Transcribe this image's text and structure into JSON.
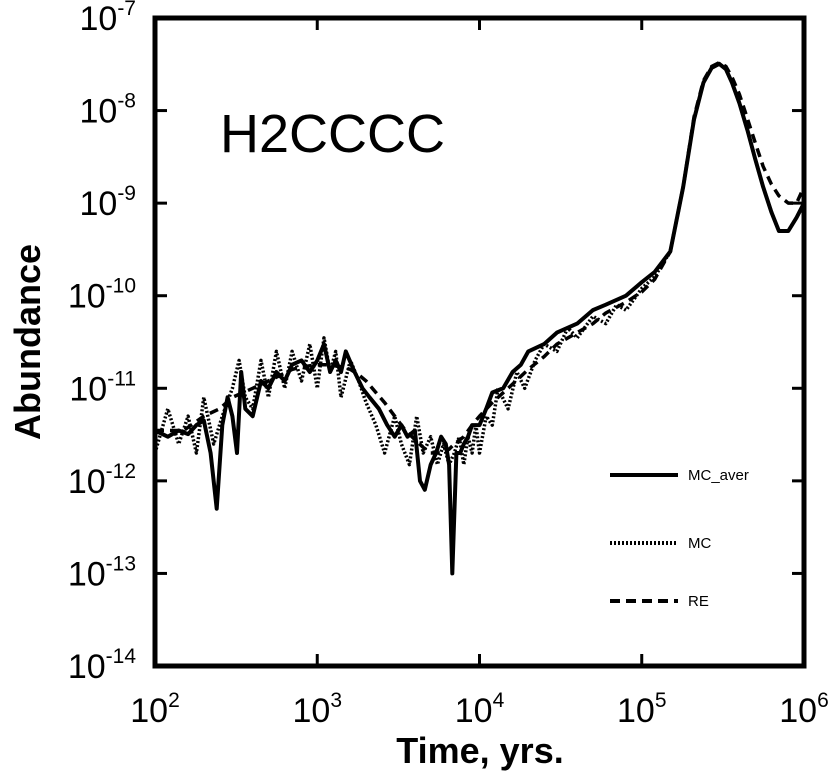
{
  "chart_data": {
    "type": "line",
    "title": "",
    "annotation": "H2CCCC",
    "xlabel": "Time, yrs.",
    "ylabel": "Abundance",
    "xscale": "log",
    "yscale": "log",
    "xlim": [
      100,
      1000000
    ],
    "ylim": [
      1e-14,
      1e-07
    ],
    "grid": false,
    "legend_position": "bottom-right",
    "x_ticks": [
      {
        "base": "10",
        "exp": "2",
        "value": 100
      },
      {
        "base": "10",
        "exp": "3",
        "value": 1000
      },
      {
        "base": "10",
        "exp": "4",
        "value": 10000
      },
      {
        "base": "10",
        "exp": "5",
        "value": 100000
      },
      {
        "base": "10",
        "exp": "6",
        "value": 1000000
      }
    ],
    "y_ticks": [
      {
        "base": "10",
        "exp": "-14",
        "value": 1e-14
      },
      {
        "base": "10",
        "exp": "-13",
        "value": 1e-13
      },
      {
        "base": "10",
        "exp": "-12",
        "value": 1e-12
      },
      {
        "base": "10",
        "exp": "-11",
        "value": 1e-11
      },
      {
        "base": "10",
        "exp": "-10",
        "value": 1e-10
      },
      {
        "base": "10",
        "exp": "-9",
        "value": 1e-09
      },
      {
        "base": "10",
        "exp": "-8",
        "value": 1e-08
      },
      {
        "base": "10",
        "exp": "-7",
        "value": 1e-07
      }
    ],
    "series": [
      {
        "name": "MC_aver",
        "style": "solid",
        "color": "#000000",
        "x": [
          100,
          120,
          140,
          160,
          180,
          200,
          220,
          240,
          260,
          280,
          300,
          320,
          340,
          360,
          400,
          450,
          500,
          560,
          630,
          700,
          800,
          900,
          1000,
          1100,
          1200,
          1300,
          1400,
          1500,
          1700,
          1900,
          2100,
          2400,
          2700,
          3000,
          3300,
          3600,
          4000,
          4300,
          4600,
          5000,
          5400,
          5800,
          6200,
          6500,
          6800,
          7200,
          7600,
          8000,
          8500,
          9000,
          10000,
          11000,
          12000,
          14000,
          16000,
          18000,
          20000,
          25000,
          30000,
          40000,
          50000,
          60000,
          80000,
          100000,
          120000,
          150000,
          180000,
          210000,
          240000,
          270000,
          300000,
          330000,
          360000,
          400000,
          450000,
          500000,
          560000,
          630000,
          700000,
          800000,
          900000,
          1000000
        ],
        "y": [
          3.5e-12,
          3e-12,
          3.5e-12,
          3.2e-12,
          4e-12,
          4.5e-12,
          2e-12,
          5e-13,
          4e-12,
          8e-12,
          5e-12,
          2e-12,
          1.5e-11,
          6e-12,
          5e-12,
          1.2e-11,
          1e-11,
          1.5e-11,
          1.2e-11,
          1.8e-11,
          2e-11,
          1.5e-11,
          2e-11,
          3e-11,
          1.5e-11,
          2e-11,
          1.5e-11,
          2.5e-11,
          1.5e-11,
          1e-11,
          8e-12,
          6e-12,
          4e-12,
          3e-12,
          4e-12,
          3e-12,
          3.5e-12,
          1e-12,
          8e-13,
          1.5e-12,
          2e-12,
          3e-12,
          2.5e-12,
          1.5e-12,
          1e-13,
          2e-12,
          2e-12,
          2.5e-12,
          3e-12,
          4e-12,
          4e-12,
          6e-12,
          9e-12,
          1e-11,
          1.5e-11,
          1.8e-11,
          2.5e-11,
          3e-11,
          4e-11,
          5e-11,
          7e-11,
          8e-11,
          1e-10,
          1.4e-10,
          1.8e-10,
          3e-10,
          1.5e-09,
          8e-09,
          2e-08,
          2.9e-08,
          3.2e-08,
          2.8e-08,
          2e-08,
          1.2e-08,
          6e-09,
          3e-09,
          1.5e-09,
          8e-10,
          5e-10,
          5e-10,
          7e-10,
          1e-09
        ]
      },
      {
        "name": "MC",
        "style": "dotted",
        "color": "#000000",
        "x": [
          100,
          120,
          140,
          160,
          180,
          200,
          230,
          260,
          300,
          330,
          360,
          400,
          450,
          500,
          560,
          630,
          700,
          800,
          900,
          1000,
          1100,
          1200,
          1300,
          1400,
          1600,
          1800,
          2000,
          2300,
          2600,
          3000,
          3300,
          3700,
          4100,
          4500,
          5000,
          5500,
          6000,
          6500,
          7000,
          7500,
          8000,
          8500,
          9000,
          9500,
          10000,
          11000,
          12000,
          13000,
          15000,
          17000,
          19000,
          22000,
          25000,
          30000,
          35000,
          40000,
          50000,
          60000,
          70000,
          80000,
          100000,
          120000,
          150000,
          180000,
          210000,
          240000,
          270000,
          300000,
          330000,
          360000,
          400000,
          450000,
          500000,
          560000,
          630000,
          700000,
          800000,
          900000,
          1000000
        ],
        "y": [
          2e-12,
          6e-12,
          2.5e-12,
          5e-12,
          2e-12,
          8e-12,
          2.5e-12,
          5e-12,
          1e-11,
          2e-11,
          8e-12,
          6e-12,
          2e-11,
          8e-12,
          2.5e-11,
          1e-11,
          2.5e-11,
          1.2e-11,
          3e-11,
          1e-11,
          3.5e-11,
          1.5e-11,
          2.5e-11,
          8e-12,
          2e-11,
          1.2e-11,
          7e-12,
          4e-12,
          2e-12,
          5e-12,
          2.5e-12,
          1.5e-12,
          5e-12,
          2e-12,
          3e-12,
          1.5e-12,
          2.5e-12,
          1.5e-12,
          2e-12,
          3e-12,
          1.5e-12,
          3e-12,
          2e-12,
          4e-12,
          2e-12,
          5e-12,
          4e-12,
          1e-11,
          6e-12,
          1.5e-11,
          1e-11,
          2e-11,
          3e-11,
          2.5e-11,
          4.5e-11,
          3.5e-11,
          6e-11,
          5e-11,
          8e-11,
          7e-11,
          1.2e-10,
          1.6e-10,
          3e-10,
          1.5e-09,
          8e-09,
          2e-08,
          2.9e-08,
          3.2e-08,
          2.8e-08,
          2e-08,
          1.2e-08,
          6e-09,
          3e-09,
          1.5e-09,
          8e-10,
          5e-10,
          5e-10,
          7e-10,
          1e-09
        ]
      },
      {
        "name": "RE",
        "style": "dashed",
        "color": "#000000",
        "x": [
          100,
          150,
          200,
          250,
          300,
          350,
          400,
          500,
          600,
          700,
          800,
          1000,
          1200,
          1400,
          1600,
          1800,
          2000,
          2300,
          2600,
          3000,
          3500,
          4000,
          4500,
          5000,
          5500,
          6000,
          6500,
          7000,
          8000,
          9000,
          10000,
          12000,
          15000,
          20000,
          25000,
          30000,
          40000,
          50000,
          60000,
          80000,
          100000,
          120000,
          150000,
          180000,
          210000,
          240000,
          270000,
          300000,
          330000,
          360000,
          400000,
          450000,
          500000,
          560000,
          630000,
          700000,
          800000,
          900000,
          1000000
        ],
        "y": [
          3.5e-12,
          3.5e-12,
          5e-12,
          6e-12,
          8e-12,
          9e-12,
          1e-11,
          1.2e-11,
          1.4e-11,
          1.6e-11,
          1.7e-11,
          1.8e-11,
          1.8e-11,
          1.7e-11,
          1.6e-11,
          1.4e-11,
          1.2e-11,
          9e-12,
          7e-12,
          5e-12,
          3.5e-12,
          2.8e-12,
          2.3e-12,
          2e-12,
          2e-12,
          2e-12,
          2.2e-12,
          2.5e-12,
          3e-12,
          4e-12,
          5e-12,
          7e-12,
          1e-11,
          1.6e-11,
          2.2e-11,
          3e-11,
          4e-11,
          5e-11,
          6.5e-11,
          8.5e-11,
          1.1e-10,
          1.5e-10,
          3e-10,
          1.5e-09,
          8.5e-09,
          2.1e-08,
          3e-08,
          3.3e-08,
          3e-08,
          2.3e-08,
          1.5e-08,
          8e-09,
          4.5e-09,
          2.5e-09,
          1.6e-09,
          1.2e-09,
          1e-09,
          1e-09,
          1.5e-09
        ]
      }
    ]
  }
}
